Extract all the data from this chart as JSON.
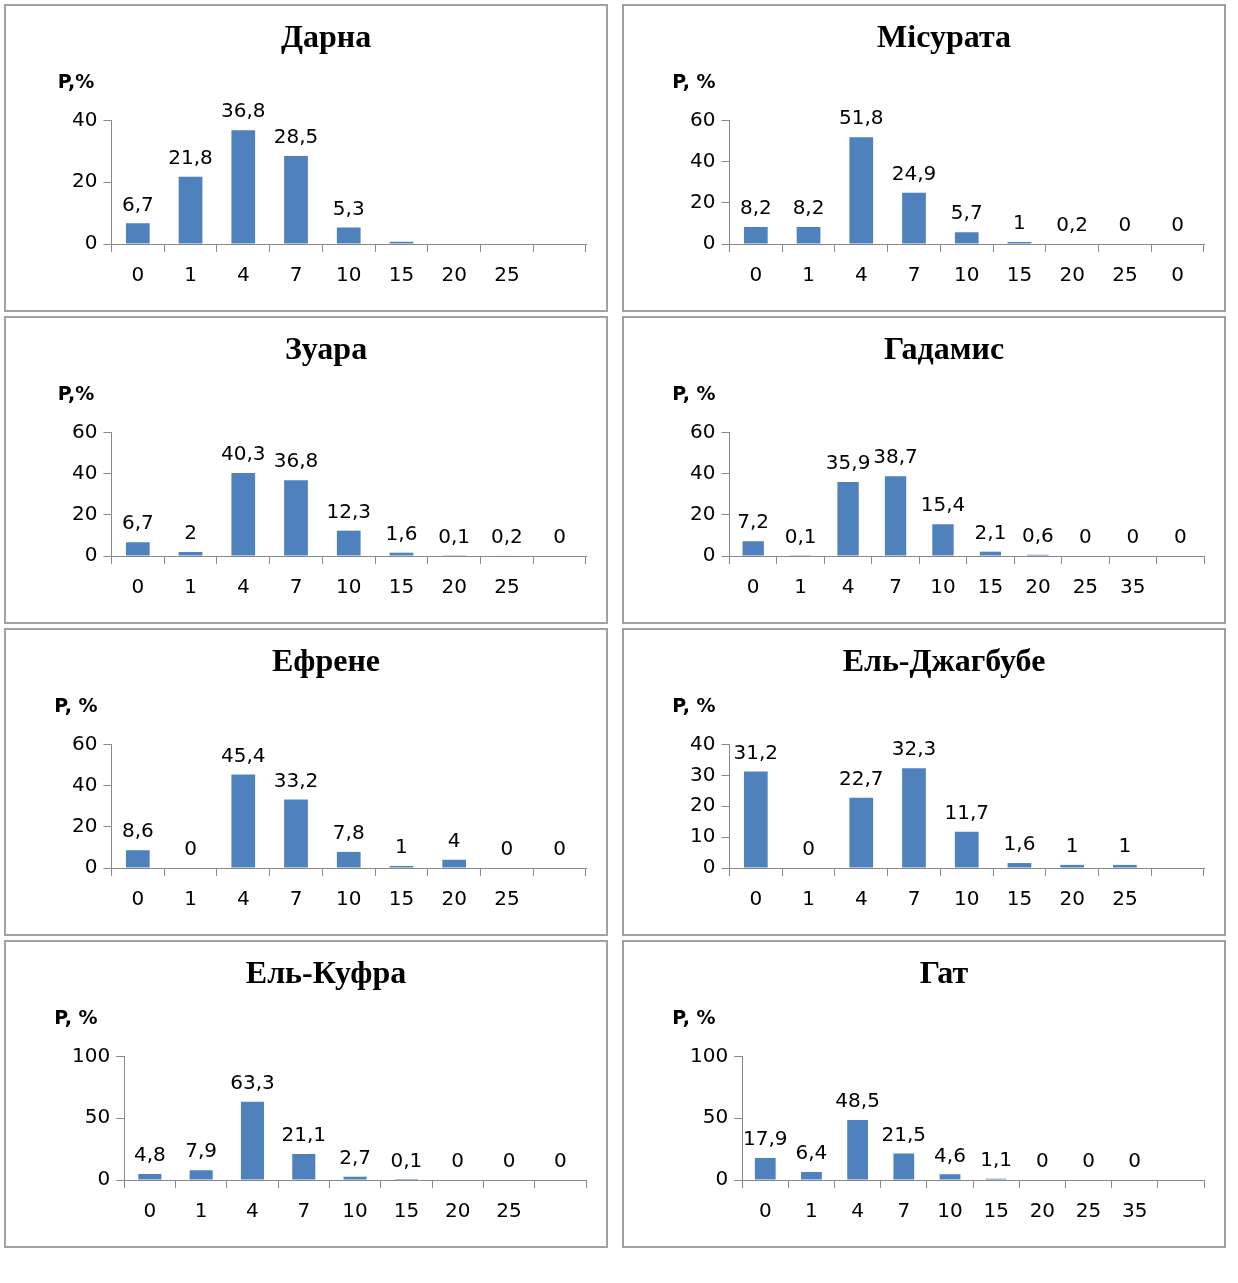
{
  "chart_data": [
    {
      "type": "bar",
      "title": "Дарна",
      "ylabel": "P,%",
      "categories": [
        "0",
        "1",
        "4",
        "7",
        "10",
        "15",
        "20",
        "25",
        null
      ],
      "values": [
        6.7,
        21.8,
        36.8,
        28.5,
        5.3,
        0.7,
        null,
        null,
        null
      ],
      "value_labels": [
        "6,7",
        "21,8",
        "36,8",
        "28,5",
        "5,3",
        null,
        null,
        null,
        null
      ],
      "color": "#4f81bd",
      "ylim": [
        0,
        40
      ],
      "yticks": [
        0,
        20,
        40
      ]
    },
    {
      "type": "bar",
      "title": "Місурата",
      "ylabel": "P, %",
      "categories": [
        "0",
        "1",
        "4",
        "7",
        "10",
        "15",
        "20",
        "25",
        "0"
      ],
      "values": [
        8.2,
        8.2,
        51.8,
        24.9,
        5.7,
        1,
        0.2,
        0,
        0
      ],
      "value_labels": [
        "8,2",
        "8,2",
        "51,8",
        "24,9",
        "5,7",
        "1",
        "0,2",
        "0",
        "0"
      ],
      "color": "#4f81bd",
      "ylim": [
        0,
        60
      ],
      "yticks": [
        0,
        20,
        40,
        60
      ]
    },
    {
      "type": "bar",
      "title": "Зуара",
      "ylabel": "P,%",
      "categories": [
        "0",
        "1",
        "4",
        "7",
        "10",
        "15",
        "20",
        "25",
        null
      ],
      "values": [
        6.7,
        2,
        40.3,
        36.8,
        12.3,
        1.6,
        0.1,
        0.2,
        0
      ],
      "value_labels": [
        "6,7",
        "2",
        "40,3",
        "36,8",
        "12,3",
        "1,6",
        "0,1",
        "0,2",
        "0"
      ],
      "color": "#4f81bd",
      "ylim": [
        0,
        60
      ],
      "yticks": [
        0,
        20,
        40,
        60
      ]
    },
    {
      "type": "bar",
      "title": "Гадамис",
      "ylabel": "P, %",
      "categories": [
        "0",
        "1",
        "4",
        "7",
        "10",
        "15",
        "20",
        "25",
        "35",
        null
      ],
      "values": [
        7.2,
        0.1,
        35.9,
        38.7,
        15.4,
        2.1,
        0.6,
        0,
        0,
        0
      ],
      "value_labels": [
        "7,2",
        "0,1",
        "35,9",
        "38,7",
        "15,4",
        "2,1",
        "0,6",
        "0",
        "0",
        "0"
      ],
      "color": "#4f81bd",
      "ylim": [
        0,
        60
      ],
      "yticks": [
        0,
        20,
        40,
        60
      ]
    },
    {
      "type": "bar",
      "title": "Ефрене",
      "ylabel": "P, %",
      "categories": [
        "0",
        "1",
        "4",
        "7",
        "10",
        "15",
        "20",
        "25",
        null
      ],
      "values": [
        8.6,
        0,
        45.4,
        33.2,
        7.8,
        1,
        4,
        0,
        0
      ],
      "value_labels": [
        "8,6",
        "0",
        "45,4",
        "33,2",
        "7,8",
        "1",
        "4",
        "0",
        "0"
      ],
      "color": "#4f81bd",
      "ylim": [
        0,
        60
      ],
      "yticks": [
        0,
        20,
        40,
        60
      ]
    },
    {
      "type": "bar",
      "title": "Ель-Джагбубе",
      "ylabel": "P, %",
      "categories": [
        "0",
        "1",
        "4",
        "7",
        "10",
        "15",
        "20",
        "25",
        null
      ],
      "values": [
        31.2,
        0,
        22.7,
        32.3,
        11.7,
        1.6,
        1,
        1,
        null
      ],
      "value_labels": [
        "31,2",
        "0",
        "22,7",
        "32,3",
        "11,7",
        "1,6",
        "1",
        "1",
        null
      ],
      "color": "#4f81bd",
      "ylim": [
        0,
        40
      ],
      "yticks": [
        0,
        10,
        20,
        30,
        40
      ]
    },
    {
      "type": "bar",
      "title": "Ель-Куфра",
      "ylabel": "P, %",
      "categories": [
        "0",
        "1",
        "4",
        "7",
        "10",
        "15",
        "20",
        "25",
        null
      ],
      "values": [
        4.8,
        7.9,
        63.3,
        21.1,
        2.7,
        0.1,
        0,
        0,
        0
      ],
      "value_labels": [
        "4,8",
        "7,9",
        "63,3",
        "21,1",
        "2,7",
        "0,1",
        "0",
        "0",
        "0"
      ],
      "color": "#4f81bd",
      "ylim": [
        0,
        100
      ],
      "yticks": [
        0,
        50,
        100
      ]
    },
    {
      "type": "bar",
      "title": "Гат",
      "ylabel": "P, %",
      "categories": [
        "0",
        "1",
        "4",
        "7",
        "10",
        "15",
        "20",
        "25",
        "35",
        null
      ],
      "values": [
        17.9,
        6.4,
        48.5,
        21.5,
        4.6,
        1.1,
        0,
        0,
        0,
        null
      ],
      "value_labels": [
        "17,9",
        "6,4",
        "48,5",
        "21,5",
        "4,6",
        "1,1",
        "0",
        "0",
        "0",
        null
      ],
      "color": "#4f81bd",
      "ylim": [
        0,
        100
      ],
      "yticks": [
        0,
        50,
        100
      ]
    }
  ]
}
